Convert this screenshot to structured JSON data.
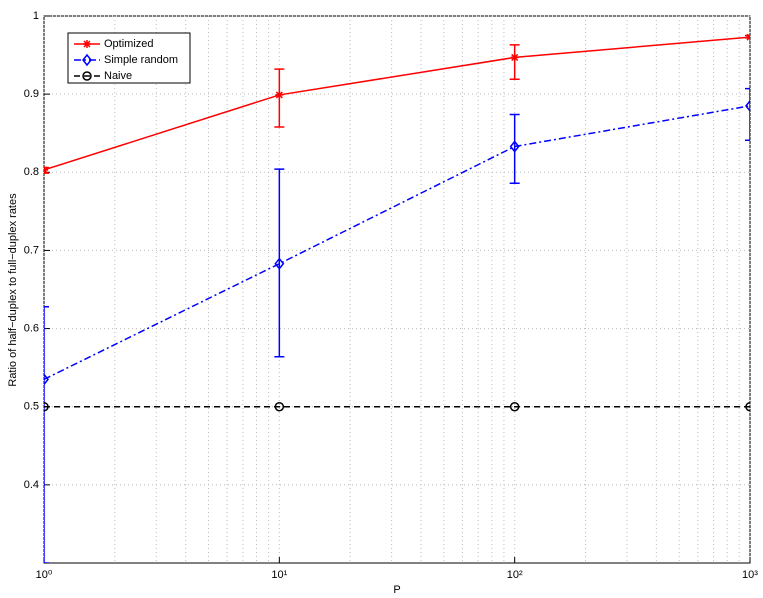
{
  "chart_data": {
    "type": "line",
    "x_label": "P",
    "y_label": "Ratio of half−duplex to full−duplex rates",
    "x": [
      1,
      10,
      100,
      1000
    ],
    "xscale": "log",
    "xlim": [
      1,
      1000
    ],
    "xticks": [
      {
        "value": 1,
        "label": "10⁰"
      },
      {
        "value": 10,
        "label": "10¹"
      },
      {
        "value": 100,
        "label": "10²"
      },
      {
        "value": 1000,
        "label": "10³"
      }
    ],
    "ylim": [
      0.3,
      1
    ],
    "yticks": [
      0.4,
      0.5,
      0.6,
      0.7,
      0.8,
      0.9,
      1
    ],
    "grid": true,
    "minor_grid": true,
    "legend": "upper left",
    "series": [
      {
        "name": "Optimized",
        "color": "#ff0000",
        "marker": "star",
        "dash": "solid",
        "values": [
          0.803,
          0.899,
          0.947,
          0.973
        ],
        "lower": [
          0.799,
          0.858,
          0.919,
          0.972
        ],
        "upper": [
          0.806,
          0.932,
          0.963,
          0.975
        ]
      },
      {
        "name": "Simple random",
        "color": "#0000ff",
        "marker": "diamond",
        "dash": "dashdot",
        "values": [
          0.535,
          0.683,
          0.833,
          0.885
        ],
        "lower": [
          0.3,
          0.564,
          0.786,
          0.841
        ],
        "upper": [
          0.628,
          0.804,
          0.874,
          0.907
        ]
      },
      {
        "name": "Naive",
        "color": "#000000",
        "marker": "circle",
        "dash": "dashed",
        "values": [
          0.5,
          0.5,
          0.5,
          0.5
        ]
      }
    ]
  }
}
